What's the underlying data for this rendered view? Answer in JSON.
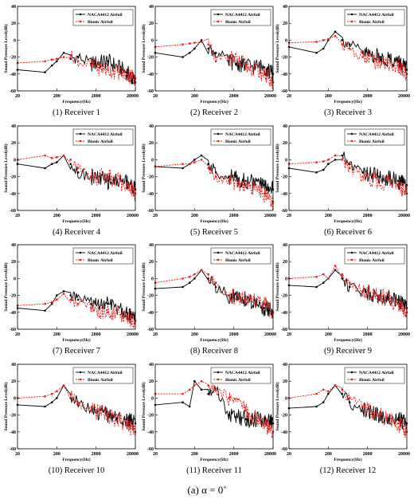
{
  "caption": "(a)   α = 0˚",
  "colors": {
    "naca": "#000000",
    "bionic": "#e8201b"
  },
  "chart_data": [
    {
      "type": "line",
      "panel_label": "(1) Receiver 1",
      "xlabel": "Frequency(Hz)",
      "ylabel": "Sound Pressure Level(dB)",
      "x_scale": "log",
      "xlim": [
        20,
        20000
      ],
      "ylim": [
        -60,
        40
      ],
      "xticks": [
        20,
        200,
        2000,
        20000
      ],
      "yticks": [
        -60,
        -40,
        -20,
        0,
        20,
        40
      ],
      "legend_position": "top-right",
      "series": [
        {
          "name": "NACA4412 Airfoil",
          "x": [
            20,
            100,
            150,
            200,
            300,
            450,
            700,
            1500,
            4000,
            12000,
            20000
          ],
          "y": [
            -35,
            -38,
            -30,
            -25,
            -15,
            -22,
            -20,
            -28,
            -25,
            -38,
            -50
          ]
        },
        {
          "name": "Bionic Airfoil",
          "x": [
            20,
            100,
            150,
            200,
            300,
            450,
            700,
            1500,
            4000,
            12000,
            20000
          ],
          "y": [
            -27,
            -25,
            -23,
            -22,
            -20,
            -18,
            -25,
            -30,
            -35,
            -40,
            -45
          ]
        }
      ]
    },
    {
      "type": "line",
      "panel_label": "(2) Receiver 2",
      "xlabel": "Frequency(Hz)",
      "ylabel": "Sound Pressure Level(dB)",
      "x_scale": "log",
      "xlim": [
        20,
        20000
      ],
      "ylim": [
        -60,
        40
      ],
      "xticks": [
        20,
        200,
        2000,
        20000
      ],
      "yticks": [
        -60,
        -40,
        -20,
        0,
        20,
        40
      ],
      "legend_position": "top-right",
      "series": [
        {
          "name": "NACA4412 Airfoil",
          "x": [
            20,
            100,
            150,
            200,
            300,
            450,
            700,
            1500,
            4000,
            12000,
            20000
          ],
          "y": [
            -15,
            -20,
            -15,
            -10,
            0,
            -10,
            -15,
            -25,
            -30,
            -32,
            -40
          ]
        },
        {
          "name": "Bionic Airfoil",
          "x": [
            20,
            100,
            150,
            200,
            300,
            450,
            700,
            1500,
            4000,
            12000,
            20000
          ],
          "y": [
            -8,
            -5,
            -4,
            -3,
            -2,
            -5,
            -25,
            -20,
            -30,
            -40,
            -50
          ]
        }
      ]
    },
    {
      "type": "line",
      "panel_label": "(3)  Receiver 3",
      "xlabel": "Frequency(Hz)",
      "ylabel": "Sound Pressure Level(dB)",
      "x_scale": "log",
      "xlim": [
        20,
        20000
      ],
      "ylim": [
        -60,
        40
      ],
      "xticks": [
        20,
        200,
        2000,
        20000
      ],
      "yticks": [
        -60,
        -40,
        -20,
        0,
        20,
        40
      ],
      "legend_position": "top-right",
      "series": [
        {
          "name": "NACA4412 Airfoil",
          "x": [
            20,
            100,
            150,
            200,
            300,
            450,
            700,
            1500,
            4000,
            12000,
            20000
          ],
          "y": [
            -8,
            -15,
            -10,
            0,
            10,
            0,
            -5,
            -15,
            -20,
            -25,
            -35
          ]
        },
        {
          "name": "Bionic Airfoil",
          "x": [
            20,
            100,
            150,
            200,
            300,
            450,
            700,
            1500,
            4000,
            12000,
            20000
          ],
          "y": [
            -3,
            -2,
            0,
            1,
            5,
            -5,
            -10,
            -20,
            -25,
            -30,
            -40
          ]
        }
      ]
    },
    {
      "type": "line",
      "panel_label": "(4) Receiver 4",
      "xlabel": "Frequency(Hz)",
      "ylabel": "Sound Pressure Level(dB)",
      "x_scale": "log",
      "xlim": [
        20,
        20000
      ],
      "ylim": [
        -60,
        40
      ],
      "xticks": [
        20,
        200,
        2000,
        20000
      ],
      "yticks": [
        -60,
        -40,
        -20,
        0,
        20,
        40
      ],
      "legend_position": "top-right",
      "series": [
        {
          "name": "NACA4412 Airfoil",
          "x": [
            20,
            100,
            150,
            200,
            300,
            450,
            700,
            1500,
            4000,
            12000,
            20000
          ],
          "y": [
            -5,
            -10,
            -5,
            -3,
            5,
            -5,
            -15,
            -20,
            -25,
            -25,
            -35
          ]
        },
        {
          "name": "Bionic Airfoil",
          "x": [
            20,
            100,
            150,
            200,
            300,
            450,
            700,
            1500,
            4000,
            12000,
            20000
          ],
          "y": [
            0,
            5,
            2,
            3,
            5,
            0,
            -10,
            -20,
            -20,
            -30,
            -40
          ]
        }
      ]
    },
    {
      "type": "line",
      "panel_label": "(5)  Receiver 5",
      "xlabel": "Frequency(Hz)",
      "ylabel": "Sound Pressure Level(dB)",
      "x_scale": "log",
      "xlim": [
        20,
        20000
      ],
      "ylim": [
        -60,
        40
      ],
      "xticks": [
        20,
        200,
        2000,
        20000
      ],
      "yticks": [
        -60,
        -40,
        -20,
        0,
        20,
        40
      ],
      "legend_position": "top-right",
      "series": [
        {
          "name": "NACA4412 Airfoil",
          "x": [
            20,
            100,
            150,
            200,
            300,
            450,
            700,
            1500,
            4000,
            12000,
            20000
          ],
          "y": [
            -8,
            -10,
            -5,
            0,
            5,
            -5,
            -15,
            -20,
            -25,
            -30,
            -35
          ]
        },
        {
          "name": "Bionic Airfoil",
          "x": [
            20,
            100,
            150,
            200,
            300,
            450,
            700,
            1500,
            4000,
            12000,
            20000
          ],
          "y": [
            -8,
            -5,
            -5,
            -3,
            0,
            -10,
            -20,
            -25,
            -30,
            -40,
            -50
          ]
        }
      ]
    },
    {
      "type": "line",
      "panel_label": "(6)  Receiver 6",
      "xlabel": "Frequency(Hz)",
      "ylabel": "Sound Pressure Level(dB)",
      "x_scale": "log",
      "xlim": [
        20,
        20000
      ],
      "ylim": [
        -60,
        40
      ],
      "xticks": [
        20,
        200,
        2000,
        20000
      ],
      "yticks": [
        -60,
        -40,
        -20,
        0,
        20,
        40
      ],
      "legend_position": "top-right",
      "series": [
        {
          "name": "NACA4412 Airfoil",
          "x": [
            20,
            100,
            150,
            200,
            300,
            450,
            700,
            1500,
            4000,
            12000,
            20000
          ],
          "y": [
            -10,
            -15,
            -12,
            -5,
            0,
            5,
            -5,
            -15,
            -20,
            -25,
            -30
          ]
        },
        {
          "name": "Bionic Airfoil",
          "x": [
            20,
            100,
            150,
            200,
            300,
            450,
            700,
            1500,
            4000,
            12000,
            20000
          ],
          "y": [
            -5,
            -3,
            -2,
            0,
            5,
            0,
            -10,
            -20,
            -25,
            -30,
            -40
          ]
        }
      ]
    },
    {
      "type": "line",
      "panel_label": "(7)  Receiver 7",
      "xlabel": "Frequency(Hz)",
      "ylabel": "Sound Pressure Level(dB)",
      "x_scale": "log",
      "xlim": [
        20,
        20000
      ],
      "ylim": [
        -60,
        40
      ],
      "xticks": [
        20,
        200,
        2000,
        20000
      ],
      "yticks": [
        -60,
        -40,
        -20,
        0,
        20,
        40
      ],
      "legend_position": "top-right",
      "series": [
        {
          "name": "NACA4412 Airfoil",
          "x": [
            20,
            100,
            150,
            200,
            300,
            450,
            700,
            1500,
            4000,
            12000,
            20000
          ],
          "y": [
            -35,
            -38,
            -30,
            -20,
            -15,
            -20,
            -25,
            -30,
            -30,
            -40,
            -50
          ]
        },
        {
          "name": "Bionic Airfoil",
          "x": [
            20,
            100,
            150,
            200,
            300,
            450,
            700,
            1500,
            4000,
            12000,
            20000
          ],
          "y": [
            -32,
            -30,
            -28,
            -25,
            -18,
            -25,
            -30,
            -35,
            -40,
            -45,
            -50
          ]
        }
      ]
    },
    {
      "type": "line",
      "panel_label": "(8)  Receiver 8",
      "xlabel": "Frequency(Hz)",
      "ylabel": "Sound Pressure Level(dB)",
      "x_scale": "log",
      "xlim": [
        20,
        20000
      ],
      "ylim": [
        -60,
        40
      ],
      "xticks": [
        20,
        200,
        2000,
        20000
      ],
      "yticks": [
        -60,
        -40,
        -20,
        0,
        20,
        40
      ],
      "legend_position": "top-right",
      "series": [
        {
          "name": "NACA4412 Airfoil",
          "x": [
            20,
            100,
            150,
            200,
            300,
            450,
            700,
            1500,
            4000,
            12000,
            20000
          ],
          "y": [
            -12,
            -10,
            -5,
            0,
            10,
            0,
            -10,
            -20,
            -25,
            -35,
            -40
          ]
        },
        {
          "name": "Bionic Airfoil",
          "x": [
            20,
            100,
            150,
            200,
            300,
            450,
            700,
            1500,
            4000,
            12000,
            20000
          ],
          "y": [
            -5,
            0,
            2,
            5,
            10,
            5,
            -5,
            -20,
            -25,
            -30,
            -40
          ]
        }
      ]
    },
    {
      "type": "line",
      "panel_label": "(9)  Receiver 9",
      "xlabel": "Frequency(Hz)",
      "ylabel": "Sound Pressure Level(dB)",
      "x_scale": "log",
      "xlim": [
        20,
        20000
      ],
      "ylim": [
        -60,
        40
      ],
      "xticks": [
        20,
        200,
        2000,
        20000
      ],
      "yticks": [
        -60,
        -40,
        -20,
        0,
        20,
        40
      ],
      "legend_position": "top-right",
      "series": [
        {
          "name": "NACA4412 Airfoil",
          "x": [
            20,
            100,
            150,
            200,
            300,
            450,
            700,
            1500,
            4000,
            12000,
            20000
          ],
          "y": [
            -8,
            -10,
            -5,
            0,
            10,
            0,
            -10,
            -15,
            -20,
            -25,
            -35
          ]
        },
        {
          "name": "Bionic Airfoil",
          "x": [
            20,
            100,
            150,
            200,
            300,
            450,
            700,
            1500,
            4000,
            12000,
            20000
          ],
          "y": [
            0,
            2,
            5,
            0,
            15,
            5,
            -5,
            -15,
            -20,
            -30,
            -40
          ]
        }
      ]
    },
    {
      "type": "line",
      "panel_label": "(10)  Receiver 10",
      "xlabel": "Frequency(Hz)",
      "ylabel": "Sound Pressure Level(dB)",
      "x_scale": "log",
      "xlim": [
        20,
        20000
      ],
      "ylim": [
        -60,
        40
      ],
      "xticks": [
        20,
        200,
        2000,
        20000
      ],
      "yticks": [
        -60,
        -40,
        -20,
        0,
        20,
        40
      ],
      "legend_position": "top-right",
      "series": [
        {
          "name": "NACA4412 Airfoil",
          "x": [
            20,
            100,
            150,
            200,
            300,
            450,
            700,
            1500,
            4000,
            12000,
            20000
          ],
          "y": [
            -8,
            -10,
            -5,
            0,
            15,
            0,
            -5,
            -15,
            -20,
            -25,
            -30
          ]
        },
        {
          "name": "Bionic Airfoil",
          "x": [
            20,
            100,
            150,
            200,
            300,
            450,
            700,
            1500,
            4000,
            12000,
            20000
          ],
          "y": [
            0,
            2,
            5,
            8,
            15,
            5,
            -5,
            -15,
            -20,
            -30,
            -40
          ]
        }
      ]
    },
    {
      "type": "line",
      "panel_label": "(11)  Receiver 11",
      "xlabel": "Frequency(Hz)",
      "ylabel": "Sound Pressure Level(dB)",
      "x_scale": "log",
      "xlim": [
        20,
        20000
      ],
      "ylim": [
        -60,
        40
      ],
      "xticks": [
        20,
        200,
        2000,
        20000
      ],
      "yticks": [
        -60,
        -40,
        -20,
        0,
        20,
        40
      ],
      "legend_position": "top-right",
      "series": [
        {
          "name": "NACA4412 Airfoil",
          "x": [
            20,
            100,
            150,
            200,
            300,
            450,
            700,
            1500,
            4000,
            12000,
            20000
          ],
          "y": [
            -8,
            -5,
            -10,
            20,
            10,
            5,
            10,
            -20,
            -25,
            -25,
            -30
          ]
        },
        {
          "name": "Bionic Airfoil",
          "x": [
            20,
            100,
            150,
            200,
            300,
            450,
            700,
            1500,
            4000,
            12000,
            20000
          ],
          "y": [
            5,
            5,
            10,
            15,
            20,
            15,
            10,
            0,
            -15,
            -30,
            -40
          ]
        }
      ]
    },
    {
      "type": "line",
      "panel_label": "(12)  Receiver 12",
      "xlabel": "Frequency(Hz)",
      "ylabel": "Sound Pressure Level(dB)",
      "x_scale": "log",
      "xlim": [
        20,
        20000
      ],
      "ylim": [
        -60,
        40
      ],
      "xticks": [
        20,
        200,
        2000,
        20000
      ],
      "yticks": [
        -60,
        -40,
        -20,
        0,
        20,
        40
      ],
      "legend_position": "top-right",
      "series": [
        {
          "name": "NACA4412 Airfoil",
          "x": [
            20,
            100,
            150,
            200,
            300,
            450,
            700,
            1500,
            4000,
            12000,
            20000
          ],
          "y": [
            -12,
            -10,
            -5,
            5,
            15,
            5,
            -5,
            -15,
            -20,
            -25,
            -30
          ]
        },
        {
          "name": "Bionic Airfoil",
          "x": [
            20,
            100,
            150,
            200,
            300,
            450,
            700,
            1500,
            4000,
            12000,
            20000
          ],
          "y": [
            0,
            5,
            10,
            8,
            15,
            10,
            0,
            -10,
            -20,
            -30,
            -40
          ]
        }
      ]
    }
  ]
}
